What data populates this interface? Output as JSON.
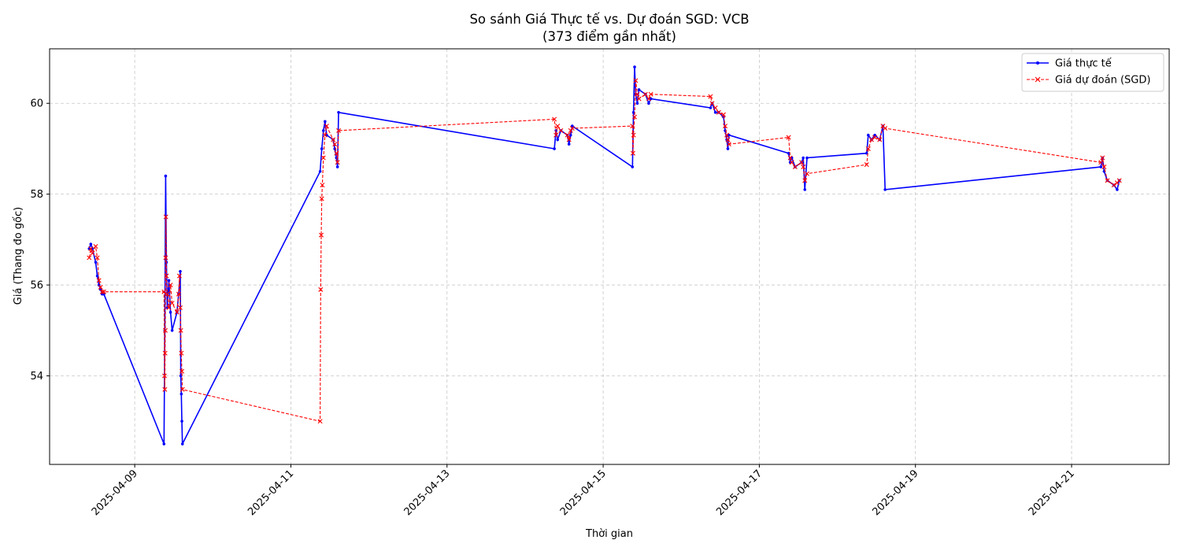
{
  "chart_data": {
    "type": "line",
    "title": "So sánh Giá Thực tế vs. Dự đoán SGD: VCB",
    "subtitle": "(373 điểm gần nhất)",
    "xlabel": "Thời gian",
    "ylabel": "Giá (Thang đo gốc)",
    "x_tick_labels": [
      "2025-04-09",
      "2025-04-11",
      "2025-04-13",
      "2025-04-15",
      "2025-04-17",
      "2025-04-19",
      "2025-04-21"
    ],
    "y_tick_labels": [
      "54",
      "56",
      "58",
      "60"
    ],
    "xlim": [
      "2025-04-07T21:50",
      "2025-04-22T06:00"
    ],
    "ylim": [
      52.05,
      61.2
    ],
    "grid": true,
    "legend_position": "top-right",
    "colors": {
      "actual": "#0000ff",
      "predicted": "#ff0000"
    },
    "series": [
      {
        "name": "Giá thực tế",
        "style": "solid-dot",
        "points": [
          [
            "2025-04-08T10:00",
            56.8
          ],
          [
            "2025-04-08T10:30",
            56.9
          ],
          [
            "2025-04-08T11:00",
            56.8
          ],
          [
            "2025-04-08T12:00",
            56.5
          ],
          [
            "2025-04-08T12:30",
            56.2
          ],
          [
            "2025-04-08T13:00",
            56.0
          ],
          [
            "2025-04-08T13:30",
            55.9
          ],
          [
            "2025-04-08T14:00",
            55.8
          ],
          [
            "2025-04-08T14:30",
            55.8
          ],
          [
            "2025-04-09T09:00",
            52.5
          ],
          [
            "2025-04-09T09:15",
            55.0
          ],
          [
            "2025-04-09T09:30",
            58.4
          ],
          [
            "2025-04-09T09:45",
            56.5
          ],
          [
            "2025-04-09T10:00",
            55.5
          ],
          [
            "2025-04-09T10:30",
            56.1
          ],
          [
            "2025-04-09T11:00",
            55.4
          ],
          [
            "2025-04-09T11:30",
            55.0
          ],
          [
            "2025-04-09T13:00",
            55.4
          ],
          [
            "2025-04-09T13:30",
            55.8
          ],
          [
            "2025-04-09T14:00",
            56.3
          ],
          [
            "2025-04-09T14:10",
            54.0
          ],
          [
            "2025-04-09T14:20",
            53.6
          ],
          [
            "2025-04-09T14:30",
            53.0
          ],
          [
            "2025-04-09T14:40",
            52.5
          ],
          [
            "2025-04-11T09:00",
            58.5
          ],
          [
            "2025-04-11T09:30",
            59.0
          ],
          [
            "2025-04-11T10:00",
            59.4
          ],
          [
            "2025-04-11T10:30",
            59.6
          ],
          [
            "2025-04-11T11:00",
            59.3
          ],
          [
            "2025-04-11T13:00",
            59.2
          ],
          [
            "2025-04-11T13:30",
            59.0
          ],
          [
            "2025-04-11T14:00",
            58.8
          ],
          [
            "2025-04-11T14:20",
            58.6
          ],
          [
            "2025-04-11T14:40",
            59.8
          ],
          [
            "2025-04-14T09:00",
            59.0
          ],
          [
            "2025-04-14T09:30",
            59.4
          ],
          [
            "2025-04-14T10:00",
            59.2
          ],
          [
            "2025-04-14T11:00",
            59.4
          ],
          [
            "2025-04-14T13:00",
            59.3
          ],
          [
            "2025-04-14T13:30",
            59.1
          ],
          [
            "2025-04-14T14:00",
            59.3
          ],
          [
            "2025-04-14T14:30",
            59.5
          ],
          [
            "2025-04-15T09:00",
            58.6
          ],
          [
            "2025-04-15T09:20",
            59.8
          ],
          [
            "2025-04-15T09:40",
            60.8
          ],
          [
            "2025-04-15T10:00",
            60.2
          ],
          [
            "2025-04-15T10:30",
            60.0
          ],
          [
            "2025-04-15T11:00",
            60.3
          ],
          [
            "2025-04-15T13:00",
            60.2
          ],
          [
            "2025-04-15T14:00",
            60.0
          ],
          [
            "2025-04-15T14:40",
            60.1
          ],
          [
            "2025-04-16T09:00",
            59.9
          ],
          [
            "2025-04-16T09:30",
            60.0
          ],
          [
            "2025-04-16T10:30",
            59.8
          ],
          [
            "2025-04-16T11:30",
            59.8
          ],
          [
            "2025-04-16T13:00",
            59.7
          ],
          [
            "2025-04-16T13:30",
            59.4
          ],
          [
            "2025-04-16T14:00",
            59.2
          ],
          [
            "2025-04-16T14:20",
            59.0
          ],
          [
            "2025-04-16T14:40",
            59.3
          ],
          [
            "2025-04-17T09:00",
            58.9
          ],
          [
            "2025-04-17T09:30",
            58.7
          ],
          [
            "2025-04-17T10:00",
            58.8
          ],
          [
            "2025-04-17T11:00",
            58.6
          ],
          [
            "2025-04-17T13:00",
            58.7
          ],
          [
            "2025-04-17T13:30",
            58.8
          ],
          [
            "2025-04-17T14:00",
            58.1
          ],
          [
            "2025-04-17T14:40",
            58.8
          ],
          [
            "2025-04-18T09:00",
            58.9
          ],
          [
            "2025-04-18T09:30",
            59.3
          ],
          [
            "2025-04-18T10:30",
            59.2
          ],
          [
            "2025-04-18T11:30",
            59.3
          ],
          [
            "2025-04-18T13:00",
            59.2
          ],
          [
            "2025-04-18T14:00",
            59.5
          ],
          [
            "2025-04-18T14:40",
            58.1
          ],
          [
            "2025-04-21T09:00",
            58.6
          ],
          [
            "2025-04-21T09:30",
            58.8
          ],
          [
            "2025-04-21T10:00",
            58.5
          ],
          [
            "2025-04-21T11:00",
            58.3
          ],
          [
            "2025-04-21T13:00",
            58.2
          ],
          [
            "2025-04-21T14:00",
            58.1
          ],
          [
            "2025-04-21T14:40",
            58.3
          ]
        ]
      },
      {
        "name": "Giá dự đoán (SGD)",
        "style": "dashed-x",
        "points": [
          [
            "2025-04-08T10:00",
            56.6
          ],
          [
            "2025-04-08T10:30",
            56.8
          ],
          [
            "2025-04-08T11:00",
            56.7
          ],
          [
            "2025-04-08T12:00",
            56.85
          ],
          [
            "2025-04-08T12:30",
            56.6
          ],
          [
            "2025-04-08T13:00",
            56.1
          ],
          [
            "2025-04-08T13:30",
            55.95
          ],
          [
            "2025-04-08T14:00",
            55.85
          ],
          [
            "2025-04-08T14:30",
            55.85
          ],
          [
            "2025-04-09T09:00",
            55.85
          ],
          [
            "2025-04-09T09:10",
            54.0
          ],
          [
            "2025-04-09T09:15",
            53.7
          ],
          [
            "2025-04-09T09:20",
            54.5
          ],
          [
            "2025-04-09T09:25",
            55.0
          ],
          [
            "2025-04-09T09:30",
            56.6
          ],
          [
            "2025-04-09T09:35",
            57.5
          ],
          [
            "2025-04-09T09:45",
            56.2
          ],
          [
            "2025-04-09T10:00",
            55.8
          ],
          [
            "2025-04-09T10:30",
            55.5
          ],
          [
            "2025-04-09T11:00",
            56.0
          ],
          [
            "2025-04-09T11:30",
            55.6
          ],
          [
            "2025-04-09T13:00",
            55.4
          ],
          [
            "2025-04-09T13:30",
            55.8
          ],
          [
            "2025-04-09T13:45",
            56.2
          ],
          [
            "2025-04-09T14:00",
            55.5
          ],
          [
            "2025-04-09T14:10",
            55.0
          ],
          [
            "2025-04-09T14:20",
            54.5
          ],
          [
            "2025-04-09T14:30",
            54.1
          ],
          [
            "2025-04-09T14:40",
            53.7
          ],
          [
            "2025-04-11T09:00",
            53.0
          ],
          [
            "2025-04-11T09:10",
            55.9
          ],
          [
            "2025-04-11T09:20",
            57.1
          ],
          [
            "2025-04-11T09:30",
            57.9
          ],
          [
            "2025-04-11T09:40",
            58.2
          ],
          [
            "2025-04-11T10:00",
            58.8
          ],
          [
            "2025-04-11T10:30",
            59.3
          ],
          [
            "2025-04-11T11:00",
            59.5
          ],
          [
            "2025-04-11T13:00",
            59.2
          ],
          [
            "2025-04-11T13:30",
            59.1
          ],
          [
            "2025-04-11T14:00",
            58.9
          ],
          [
            "2025-04-11T14:20",
            58.7
          ],
          [
            "2025-04-11T14:40",
            59.4
          ],
          [
            "2025-04-14T09:00",
            59.65
          ],
          [
            "2025-04-14T09:30",
            59.3
          ],
          [
            "2025-04-14T10:00",
            59.5
          ],
          [
            "2025-04-14T11:00",
            59.4
          ],
          [
            "2025-04-14T13:00",
            59.3
          ],
          [
            "2025-04-14T13:30",
            59.2
          ],
          [
            "2025-04-14T14:00",
            59.4
          ],
          [
            "2025-04-14T14:30",
            59.45
          ],
          [
            "2025-04-15T09:00",
            59.5
          ],
          [
            "2025-04-15T09:10",
            58.9
          ],
          [
            "2025-04-15T09:20",
            59.3
          ],
          [
            "2025-04-15T09:40",
            59.7
          ],
          [
            "2025-04-15T10:00",
            60.5
          ],
          [
            "2025-04-15T10:30",
            60.2
          ],
          [
            "2025-04-15T11:00",
            60.1
          ],
          [
            "2025-04-15T13:00",
            60.2
          ],
          [
            "2025-04-15T14:00",
            60.1
          ],
          [
            "2025-04-15T14:40",
            60.2
          ],
          [
            "2025-04-16T09:00",
            60.15
          ],
          [
            "2025-04-16T09:30",
            60.0
          ],
          [
            "2025-04-16T10:30",
            59.9
          ],
          [
            "2025-04-16T11:30",
            59.8
          ],
          [
            "2025-04-16T13:00",
            59.75
          ],
          [
            "2025-04-16T13:30",
            59.5
          ],
          [
            "2025-04-16T14:00",
            59.3
          ],
          [
            "2025-04-16T14:20",
            59.2
          ],
          [
            "2025-04-16T14:40",
            59.1
          ],
          [
            "2025-04-17T09:00",
            59.25
          ],
          [
            "2025-04-17T09:30",
            58.8
          ],
          [
            "2025-04-17T10:00",
            58.7
          ],
          [
            "2025-04-17T11:00",
            58.6
          ],
          [
            "2025-04-17T13:00",
            58.7
          ],
          [
            "2025-04-17T13:30",
            58.6
          ],
          [
            "2025-04-17T14:00",
            58.3
          ],
          [
            "2025-04-17T14:40",
            58.45
          ],
          [
            "2025-04-18T09:00",
            58.65
          ],
          [
            "2025-04-18T09:30",
            59.0
          ],
          [
            "2025-04-18T10:30",
            59.2
          ],
          [
            "2025-04-18T11:30",
            59.25
          ],
          [
            "2025-04-18T13:00",
            59.2
          ],
          [
            "2025-04-18T14:00",
            59.5
          ],
          [
            "2025-04-18T14:40",
            59.45
          ],
          [
            "2025-04-21T09:00",
            58.7
          ],
          [
            "2025-04-21T09:30",
            58.8
          ],
          [
            "2025-04-21T10:00",
            58.6
          ],
          [
            "2025-04-21T11:00",
            58.3
          ],
          [
            "2025-04-21T13:00",
            58.2
          ],
          [
            "2025-04-21T14:00",
            58.25
          ],
          [
            "2025-04-21T14:40",
            58.3
          ]
        ]
      }
    ]
  }
}
